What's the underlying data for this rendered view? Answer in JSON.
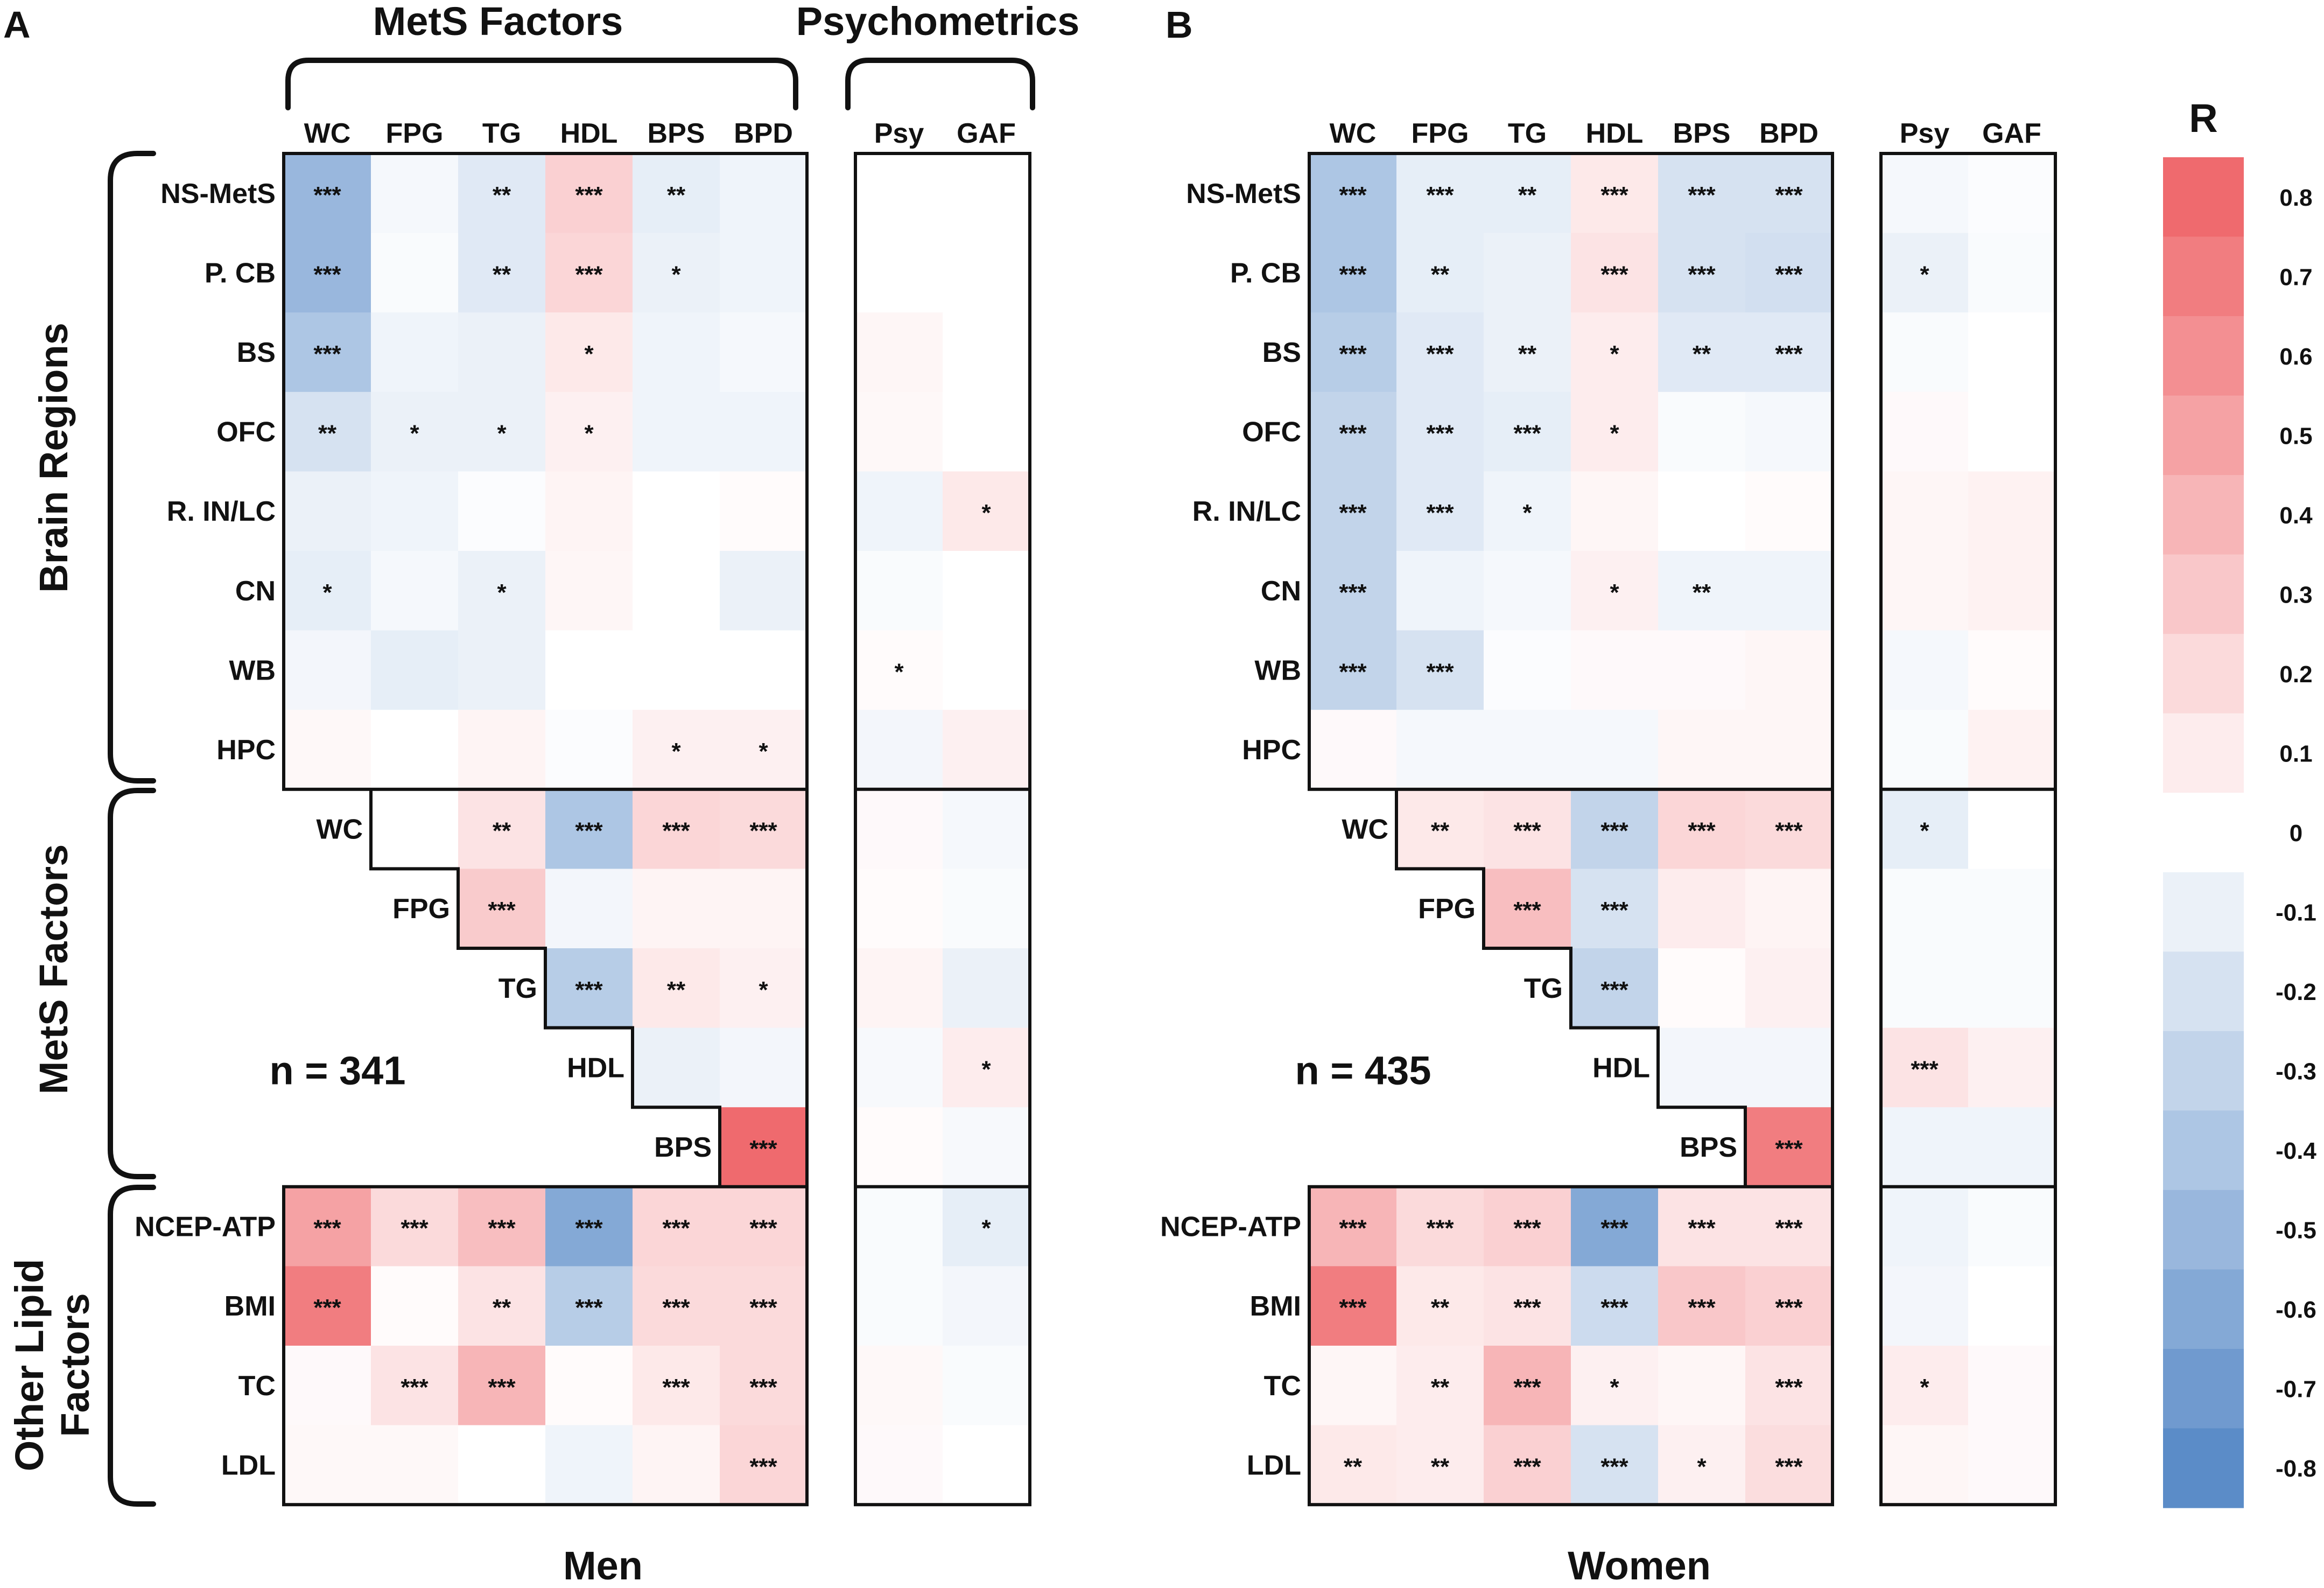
{
  "panels": {
    "A": "A",
    "B": "B"
  },
  "headers": {
    "mets_factors": "MetS Factors",
    "psychometrics": "Psychometrics"
  },
  "side_groups": {
    "brain": "Brain Regions",
    "mets": "MetS Factors",
    "lipid_line1": "Other Lipid",
    "lipid_line2": "Factors"
  },
  "footers": {
    "men": "Men",
    "women": "Women"
  },
  "colorbar": {
    "title": "R",
    "ticks": [
      "0.8",
      "0.7",
      "0.6",
      "0.5",
      "0.4",
      "0.3",
      "0.2",
      "0.1",
      "0",
      "-0.1",
      "-0.2",
      "-0.3",
      "-0.4",
      "-0.5",
      "-0.6",
      "-0.7",
      "-0.8"
    ]
  },
  "colors": {
    "positive": "#ef6a6e",
    "negative": "#5b8cc8",
    "zero": "#ffffff"
  },
  "chart_data": [
    {
      "type": "heatmap",
      "panel": "A",
      "title": "Men",
      "n_label": "n = 341",
      "columns": [
        "WC",
        "FPG",
        "TG",
        "HDL",
        "BPS",
        "BPD",
        "Psy",
        "GAF"
      ],
      "rows": [
        "NS-MetS",
        "P. CB",
        "BS",
        "OFC",
        "R. IN/LC",
        "CN",
        "WB",
        "HPC",
        "WC",
        "FPG",
        "TG",
        "HDL",
        "BPS",
        "NCEP-ATP",
        "BMI",
        "TC",
        "LDL"
      ],
      "values": [
        [
          -0.5,
          -0.05,
          -0.15,
          0.25,
          -0.12,
          -0.08,
          0.0,
          0.0
        ],
        [
          -0.5,
          -0.03,
          -0.15,
          0.22,
          -0.1,
          -0.08,
          0.0,
          0.0
        ],
        [
          -0.4,
          -0.08,
          -0.1,
          0.12,
          -0.08,
          -0.05,
          0.05,
          0.0
        ],
        [
          -0.2,
          -0.1,
          -0.1,
          0.08,
          -0.08,
          -0.08,
          0.04,
          0.0
        ],
        [
          -0.1,
          -0.08,
          -0.02,
          0.06,
          0.0,
          0.02,
          -0.08,
          0.12
        ],
        [
          -0.12,
          -0.05,
          -0.1,
          0.05,
          0.0,
          -0.1,
          -0.03,
          0.0
        ],
        [
          -0.06,
          -0.12,
          -0.1,
          0.0,
          0.0,
          0.0,
          0.02,
          0.0
        ],
        [
          0.04,
          0.0,
          0.06,
          -0.02,
          0.08,
          0.08,
          -0.06,
          0.08
        ],
        [
          null,
          null,
          0.15,
          -0.4,
          0.22,
          0.2,
          0.03,
          -0.05
        ],
        [
          null,
          null,
          0.28,
          -0.06,
          0.06,
          0.06,
          0.02,
          -0.03
        ],
        [
          null,
          null,
          null,
          -0.35,
          0.12,
          0.08,
          0.06,
          -0.1
        ],
        [
          null,
          null,
          null,
          null,
          -0.1,
          -0.06,
          -0.04,
          0.1
        ],
        [
          null,
          null,
          null,
          null,
          null,
          0.8,
          0.02,
          -0.04
        ],
        [
          0.5,
          0.2,
          0.35,
          -0.6,
          0.22,
          0.22,
          -0.03,
          -0.12
        ],
        [
          0.7,
          0.02,
          0.15,
          -0.35,
          0.2,
          0.2,
          -0.03,
          -0.06
        ],
        [
          0.03,
          0.15,
          0.4,
          0.02,
          0.12,
          0.2,
          0.04,
          -0.03
        ],
        [
          0.04,
          0.04,
          0.0,
          -0.08,
          0.06,
          0.22,
          0.03,
          0.0
        ]
      ],
      "stars": [
        [
          "***",
          "",
          "**",
          "***",
          "**",
          "",
          "",
          ""
        ],
        [
          "***",
          "",
          "**",
          "***",
          "*",
          "",
          "",
          ""
        ],
        [
          "***",
          "",
          "",
          "*",
          "",
          "",
          "",
          ""
        ],
        [
          "**",
          "*",
          "*",
          "*",
          "",
          "",
          "",
          ""
        ],
        [
          "",
          "",
          "",
          "",
          "",
          "",
          "",
          "*"
        ],
        [
          "*",
          "",
          "*",
          "",
          "",
          "",
          "",
          ""
        ],
        [
          "",
          "",
          "",
          "",
          "",
          "",
          "*",
          ""
        ],
        [
          "",
          "",
          "",
          "",
          "*",
          "*",
          "",
          ""
        ],
        [
          "",
          "",
          "**",
          "***",
          "***",
          "***",
          "",
          ""
        ],
        [
          "",
          "",
          "***",
          "",
          "",
          "",
          "",
          ""
        ],
        [
          "",
          "",
          "",
          "***",
          "**",
          "*",
          "",
          ""
        ],
        [
          "",
          "",
          "",
          "",
          "",
          "",
          "",
          "*"
        ],
        [
          "",
          "",
          "",
          "",
          "",
          "***",
          "",
          ""
        ],
        [
          "***",
          "***",
          "***",
          "***",
          "***",
          "***",
          "",
          "*"
        ],
        [
          "***",
          "",
          "**",
          "***",
          "***",
          "***",
          "",
          ""
        ],
        [
          "",
          "***",
          "***",
          "",
          "***",
          "***",
          "",
          ""
        ],
        [
          "",
          "",
          "",
          "",
          "",
          "***",
          "",
          ""
        ]
      ]
    },
    {
      "type": "heatmap",
      "panel": "B",
      "title": "Women",
      "n_label": "n = 435",
      "columns": [
        "WC",
        "FPG",
        "TG",
        "HDL",
        "BPS",
        "BPD",
        "Psy",
        "GAF"
      ],
      "rows": [
        "NS-MetS",
        "P. CB",
        "BS",
        "OFC",
        "R. IN/LC",
        "CN",
        "WB",
        "HPC",
        "WC",
        "FPG",
        "TG",
        "HDL",
        "BPS",
        "NCEP-ATP",
        "BMI",
        "TC",
        "LDL"
      ],
      "values": [
        [
          -0.4,
          -0.12,
          -0.12,
          0.12,
          -0.2,
          -0.2,
          -0.05,
          -0.02
        ],
        [
          -0.4,
          -0.12,
          -0.1,
          0.15,
          -0.2,
          -0.22,
          -0.1,
          -0.03
        ],
        [
          -0.35,
          -0.15,
          -0.1,
          0.1,
          -0.15,
          -0.15,
          -0.03,
          0.0
        ],
        [
          -0.3,
          -0.15,
          -0.12,
          0.1,
          -0.03,
          -0.05,
          0.03,
          0.0
        ],
        [
          -0.3,
          -0.15,
          -0.08,
          0.05,
          0.0,
          0.02,
          0.05,
          0.07
        ],
        [
          -0.3,
          -0.08,
          -0.05,
          0.08,
          -0.08,
          -0.08,
          0.05,
          0.07
        ],
        [
          -0.3,
          -0.2,
          -0.02,
          0.03,
          0.03,
          0.05,
          -0.05,
          0.02
        ],
        [
          0.03,
          -0.05,
          -0.05,
          -0.05,
          0.05,
          0.05,
          -0.03,
          0.07
        ],
        [
          null,
          0.12,
          0.15,
          -0.3,
          0.22,
          0.2,
          -0.12,
          0.0
        ],
        [
          null,
          null,
          0.35,
          -0.2,
          0.1,
          0.06,
          -0.03,
          -0.03
        ],
        [
          null,
          null,
          null,
          -0.3,
          0.02,
          0.08,
          -0.03,
          -0.03
        ],
        [
          null,
          null,
          null,
          null,
          -0.06,
          -0.06,
          0.15,
          0.08
        ],
        [
          null,
          null,
          null,
          null,
          null,
          0.7,
          -0.08,
          -0.08
        ],
        [
          0.4,
          0.2,
          0.25,
          -0.6,
          0.15,
          0.15,
          -0.08,
          -0.03
        ],
        [
          0.7,
          0.12,
          0.15,
          -0.25,
          0.3,
          0.25,
          -0.06,
          0.0
        ],
        [
          0.05,
          0.1,
          0.4,
          0.08,
          0.05,
          0.15,
          0.1,
          0.03
        ],
        [
          0.12,
          0.1,
          0.25,
          -0.2,
          0.08,
          0.18,
          0.05,
          0.03
        ]
      ],
      "stars": [
        [
          "***",
          "***",
          "**",
          "***",
          "***",
          "***",
          "",
          ""
        ],
        [
          "***",
          "**",
          "",
          "***",
          "***",
          "***",
          "*",
          ""
        ],
        [
          "***",
          "***",
          "**",
          "*",
          "**",
          "***",
          "",
          ""
        ],
        [
          "***",
          "***",
          "***",
          "*",
          "",
          "",
          "",
          ""
        ],
        [
          "***",
          "***",
          "*",
          "",
          "",
          "",
          "",
          ""
        ],
        [
          "***",
          "",
          "",
          "*",
          "**",
          "",
          "",
          ""
        ],
        [
          "***",
          "***",
          "",
          "",
          "",
          "",
          "",
          ""
        ],
        [
          "",
          "",
          "",
          "",
          "",
          "",
          "",
          ""
        ],
        [
          "",
          "**",
          "***",
          "***",
          "***",
          "***",
          "*",
          ""
        ],
        [
          "",
          "",
          "***",
          "***",
          "",
          "",
          "",
          ""
        ],
        [
          "",
          "",
          "",
          "***",
          "",
          "",
          "",
          ""
        ],
        [
          "",
          "",
          "",
          "",
          "",
          "",
          "***",
          ""
        ],
        [
          "",
          "",
          "",
          "",
          "",
          "***",
          "",
          ""
        ],
        [
          "***",
          "***",
          "***",
          "***",
          "***",
          "***",
          "",
          ""
        ],
        [
          "***",
          "**",
          "***",
          "***",
          "***",
          "***",
          "",
          ""
        ],
        [
          "",
          "**",
          "***",
          "*",
          "",
          "***",
          "*",
          ""
        ],
        [
          "**",
          "**",
          "***",
          "***",
          "*",
          "***",
          "",
          ""
        ]
      ]
    }
  ]
}
